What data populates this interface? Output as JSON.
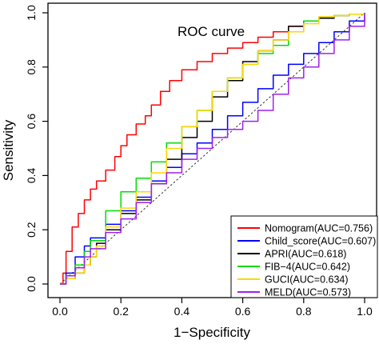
{
  "chart_data": {
    "type": "line",
    "title": "ROC curve",
    "xlabel": "1−Specificity",
    "ylabel": "Sensitivity",
    "xlim": [
      0.0,
      1.0
    ],
    "ylim": [
      0.0,
      1.0
    ],
    "xticks": [
      "0.0",
      "0.2",
      "0.4",
      "0.6",
      "0.8",
      "1.0"
    ],
    "yticks": [
      "0.0",
      "0.2",
      "0.4",
      "0.6",
      "0.8",
      "1.0"
    ],
    "grid": false,
    "legend_position": "bottom-right",
    "reference_line": "diagonal",
    "series": [
      {
        "name": "Nomogram(AUC=0.756)",
        "color": "#ff0000",
        "x": [
          0.0,
          0.01,
          0.02,
          0.04,
          0.06,
          0.08,
          0.1,
          0.12,
          0.15,
          0.18,
          0.2,
          0.22,
          0.25,
          0.28,
          0.3,
          0.33,
          0.36,
          0.4,
          0.45,
          0.5,
          0.55,
          0.6,
          0.65,
          0.7,
          0.75,
          0.8,
          0.85,
          0.9,
          0.95,
          1.0
        ],
        "y": [
          0.0,
          0.04,
          0.12,
          0.21,
          0.26,
          0.31,
          0.35,
          0.38,
          0.42,
          0.47,
          0.51,
          0.55,
          0.59,
          0.62,
          0.66,
          0.71,
          0.75,
          0.79,
          0.82,
          0.85,
          0.87,
          0.89,
          0.91,
          0.93,
          0.95,
          0.97,
          0.985,
          0.99,
          0.995,
          1.0
        ]
      },
      {
        "name": "Child_score(AUC=0.607)",
        "color": "#0000ff",
        "x": [
          0.0,
          0.02,
          0.05,
          0.08,
          0.1,
          0.15,
          0.2,
          0.25,
          0.3,
          0.35,
          0.4,
          0.45,
          0.5,
          0.55,
          0.6,
          0.65,
          0.7,
          0.75,
          0.8,
          0.85,
          0.9,
          0.95,
          1.0
        ],
        "y": [
          0.0,
          0.04,
          0.1,
          0.14,
          0.17,
          0.22,
          0.27,
          0.32,
          0.38,
          0.43,
          0.48,
          0.52,
          0.57,
          0.62,
          0.67,
          0.72,
          0.77,
          0.81,
          0.85,
          0.89,
          0.93,
          0.97,
          1.0
        ]
      },
      {
        "name": "APRI(AUC=0.618)",
        "color": "#000000",
        "x": [
          0.0,
          0.02,
          0.05,
          0.08,
          0.1,
          0.12,
          0.15,
          0.2,
          0.25,
          0.3,
          0.35,
          0.4,
          0.45,
          0.5,
          0.55,
          0.6,
          0.65,
          0.7,
          0.75,
          0.8,
          0.85,
          0.9,
          0.95,
          1.0
        ],
        "y": [
          0.0,
          0.02,
          0.04,
          0.07,
          0.1,
          0.15,
          0.2,
          0.26,
          0.31,
          0.37,
          0.46,
          0.54,
          0.6,
          0.69,
          0.75,
          0.82,
          0.86,
          0.9,
          0.95,
          0.97,
          0.98,
          0.99,
          0.995,
          1.0
        ]
      },
      {
        "name": "FIB−4(AUC=0.642)",
        "color": "#00dd00",
        "x": [
          0.0,
          0.02,
          0.05,
          0.08,
          0.1,
          0.15,
          0.2,
          0.25,
          0.3,
          0.35,
          0.4,
          0.45,
          0.5,
          0.55,
          0.6,
          0.65,
          0.7,
          0.75,
          0.8,
          0.85,
          0.9,
          0.95,
          1.0
        ],
        "y": [
          0.0,
          0.03,
          0.07,
          0.12,
          0.16,
          0.27,
          0.34,
          0.39,
          0.45,
          0.52,
          0.58,
          0.64,
          0.71,
          0.76,
          0.81,
          0.85,
          0.88,
          0.93,
          0.97,
          0.985,
          0.99,
          0.995,
          1.0
        ]
      },
      {
        "name": "GUCI(AUC=0.634)",
        "color": "#ffd700",
        "x": [
          0.0,
          0.02,
          0.05,
          0.08,
          0.1,
          0.12,
          0.15,
          0.2,
          0.25,
          0.3,
          0.35,
          0.4,
          0.45,
          0.5,
          0.55,
          0.6,
          0.65,
          0.7,
          0.75,
          0.8,
          0.85,
          0.9,
          0.95,
          1.0
        ],
        "y": [
          0.0,
          0.02,
          0.04,
          0.07,
          0.1,
          0.14,
          0.21,
          0.28,
          0.34,
          0.41,
          0.5,
          0.58,
          0.64,
          0.71,
          0.76,
          0.81,
          0.86,
          0.9,
          0.93,
          0.96,
          0.985,
          0.99,
          0.995,
          1.0
        ]
      },
      {
        "name": "MELD(AUC=0.573)",
        "color": "#a020f0",
        "x": [
          0.0,
          0.02,
          0.05,
          0.08,
          0.1,
          0.15,
          0.2,
          0.25,
          0.3,
          0.35,
          0.4,
          0.45,
          0.5,
          0.55,
          0.6,
          0.65,
          0.7,
          0.75,
          0.8,
          0.85,
          0.9,
          0.95,
          1.0
        ],
        "y": [
          0.0,
          0.03,
          0.06,
          0.1,
          0.13,
          0.19,
          0.24,
          0.3,
          0.37,
          0.41,
          0.46,
          0.5,
          0.54,
          0.57,
          0.6,
          0.64,
          0.7,
          0.76,
          0.8,
          0.85,
          0.9,
          0.95,
          1.0
        ]
      }
    ]
  }
}
